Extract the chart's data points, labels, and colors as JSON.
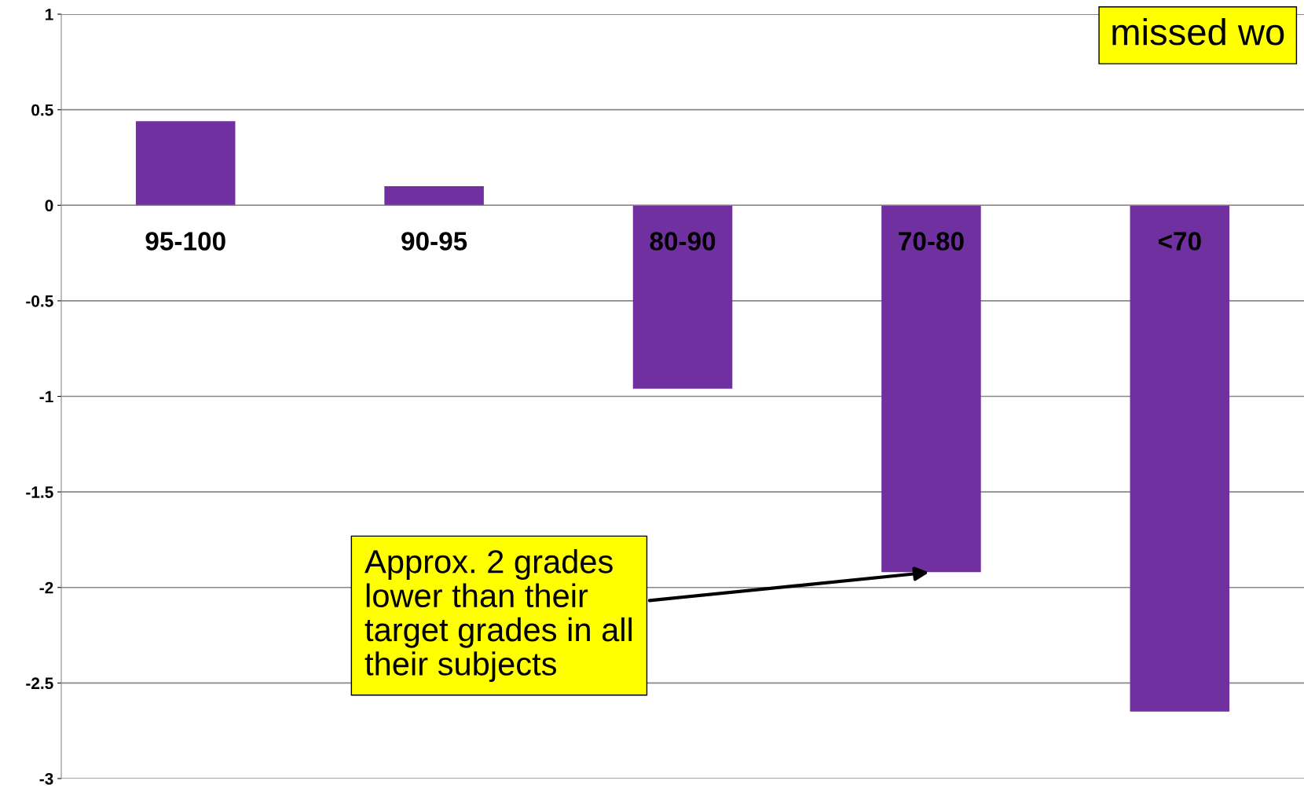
{
  "chart_data": {
    "type": "bar",
    "categories": [
      "95-100",
      "90-95",
      "80-90",
      "70-80",
      "<70"
    ],
    "values": [
      0.44,
      0.1,
      -0.96,
      -1.92,
      -2.65
    ],
    "color": "#7030a0",
    "ylim": [
      -3,
      1
    ],
    "yticks": [
      1,
      0.5,
      0,
      -0.5,
      -1,
      -1.5,
      -2,
      -2.5,
      -3
    ],
    "grid": "y",
    "annotations": [
      "missed wo",
      {
        "text": "Approx. 2 grades\nlower than their\ntarget grades in all\ntheir subjects",
        "x": "70-80",
        "y": -1.92
      }
    ]
  }
}
